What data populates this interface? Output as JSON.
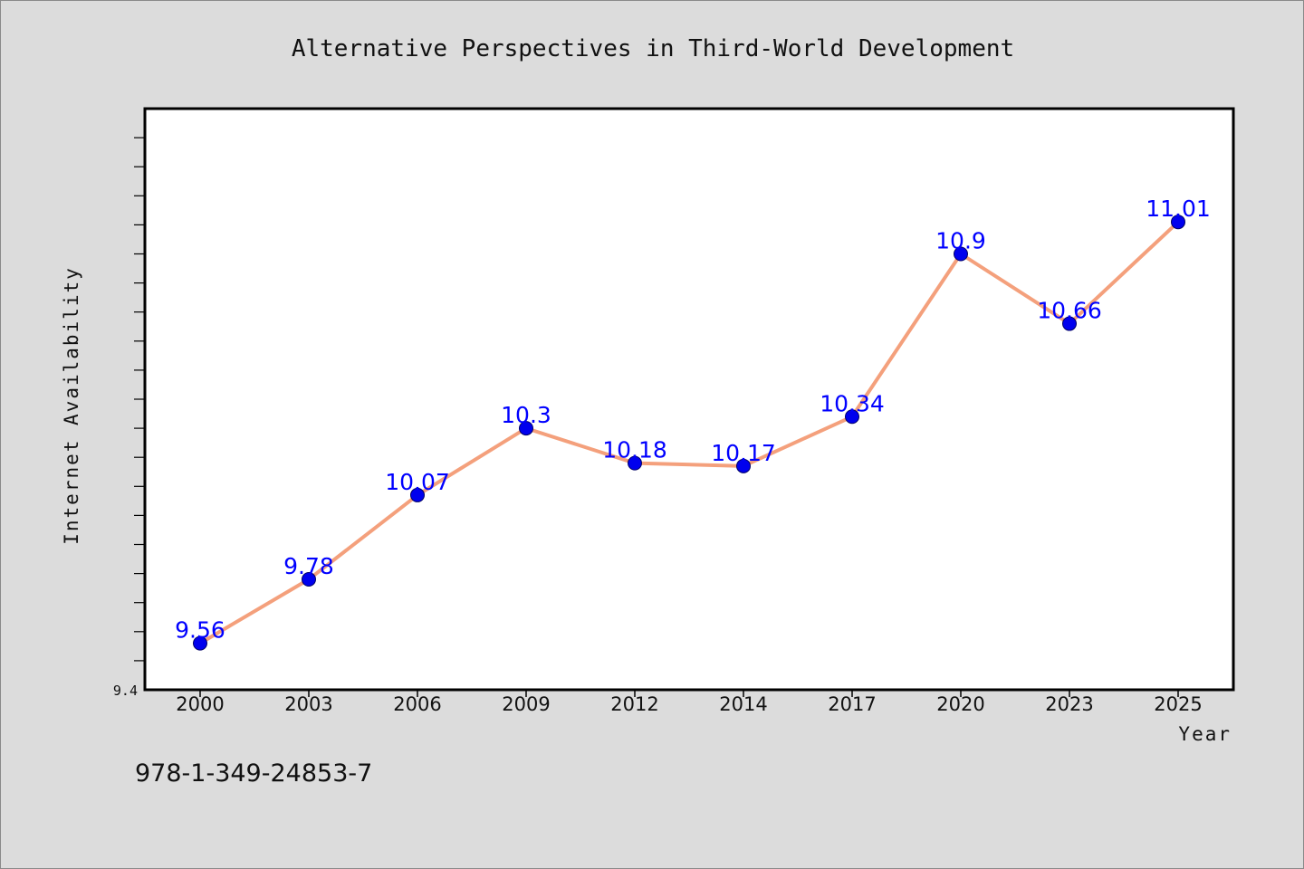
{
  "chart_data": {
    "type": "line",
    "title": "Alternative Perspectives in Third-World Development",
    "xlabel": "Year",
    "ylabel": "Internet Availability",
    "categories": [
      "2000",
      "2003",
      "2006",
      "2009",
      "2012",
      "2014",
      "2017",
      "2020",
      "2023",
      "2025"
    ],
    "series": [
      {
        "values": [
          9.56,
          9.78,
          10.07,
          10.3,
          10.18,
          10.17,
          10.34,
          10.9,
          10.66,
          11.01
        ]
      }
    ],
    "data_labels": [
      "9.56",
      "9.78",
      "10.07",
      "10.3",
      "10.18",
      "10.17",
      "10.34",
      "10.9",
      "10.66",
      "11.01"
    ],
    "ylim": [
      9.4,
      11.4
    ],
    "yticks_labeled": [
      "9.4"
    ],
    "grid": false,
    "legend": "none",
    "colors": {
      "line": "#f4a07c",
      "marker": "#0000ee",
      "label": "#0000ff",
      "background": "#dcdcdc",
      "plot_background": "#ffffff"
    }
  },
  "footer": {
    "isbn": "978-1-349-24853-7"
  }
}
